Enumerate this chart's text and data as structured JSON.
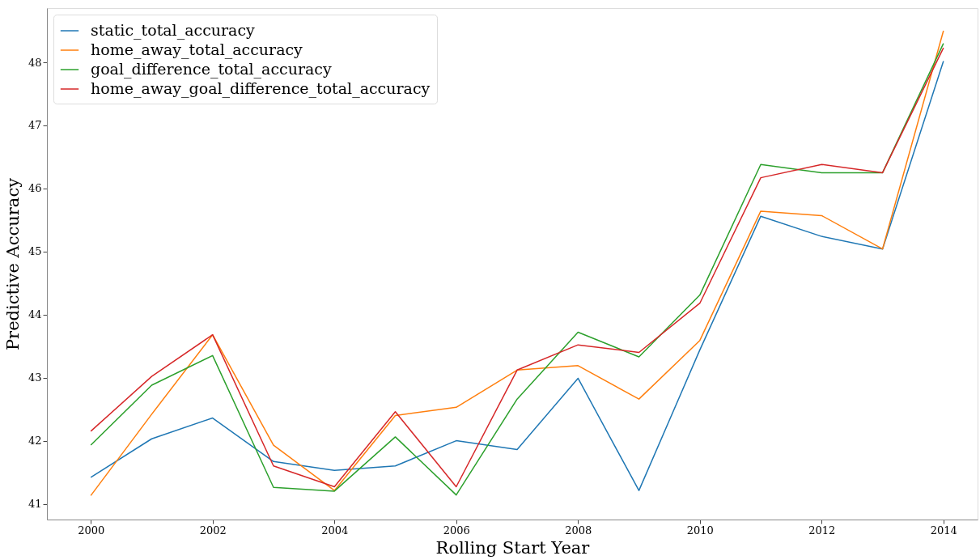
{
  "chart_data": {
    "type": "line",
    "xlabel": "Rolling Start Year",
    "ylabel": "Predictive Accuracy",
    "x": [
      2000,
      2001,
      2002,
      2003,
      2004,
      2005,
      2006,
      2007,
      2008,
      2009,
      2010,
      2011,
      2012,
      2013,
      2014
    ],
    "series": [
      {
        "name": "static_total_accuracy",
        "color": "#1f77b4",
        "values": [
          41.42,
          42.03,
          42.36,
          41.67,
          41.53,
          41.6,
          42.0,
          41.86,
          42.99,
          41.21,
          43.44,
          45.56,
          45.24,
          45.04,
          48.02
        ]
      },
      {
        "name": "home_away_total_accuracy",
        "color": "#ff7f0e",
        "values": [
          41.13,
          42.42,
          43.68,
          41.93,
          41.21,
          42.4,
          42.53,
          43.12,
          43.19,
          42.66,
          43.59,
          45.64,
          45.57,
          45.04,
          48.5
        ]
      },
      {
        "name": "goal_difference_total_accuracy",
        "color": "#2ca02c",
        "values": [
          41.93,
          42.88,
          43.35,
          41.26,
          41.2,
          42.06,
          41.14,
          42.66,
          43.72,
          43.33,
          44.31,
          46.38,
          46.25,
          46.25,
          48.3
        ]
      },
      {
        "name": "home_away_goal_difference_total_accuracy",
        "color": "#d62728",
        "values": [
          42.15,
          43.02,
          43.68,
          41.6,
          41.27,
          42.46,
          41.27,
          43.12,
          43.52,
          43.4,
          44.18,
          46.17,
          46.38,
          46.25,
          48.23
        ]
      }
    ],
    "xlim": [
      1999.28,
      2014.56
    ],
    "xticks": [
      2000,
      2002,
      2004,
      2006,
      2008,
      2010,
      2012,
      2014
    ],
    "ylim": [
      40.75,
      48.86
    ],
    "yticks": [
      41,
      42,
      43,
      44,
      45,
      46,
      47,
      48
    ],
    "grid": false,
    "legend": "top left",
    "marker": "none",
    "line_style": "solid"
  }
}
